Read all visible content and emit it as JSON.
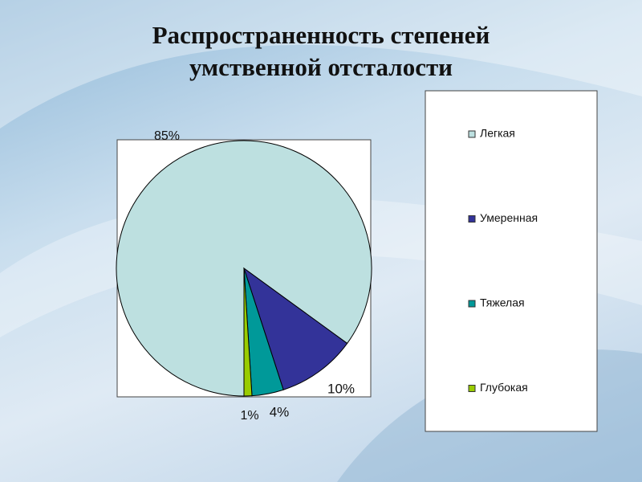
{
  "chart_data": {
    "type": "pie",
    "title": "Распространенность степеней умственной отсталости",
    "categories": [
      "Легкая",
      "Умеренная",
      "Тяжелая",
      "Глубокая"
    ],
    "values": [
      85,
      10,
      4,
      1
    ],
    "value_labels": [
      "85%",
      "10%",
      "4%",
      "1%"
    ],
    "colors": [
      "#bde0e0",
      "#333399",
      "#009999",
      "#99cc00"
    ],
    "legend": "right"
  }
}
